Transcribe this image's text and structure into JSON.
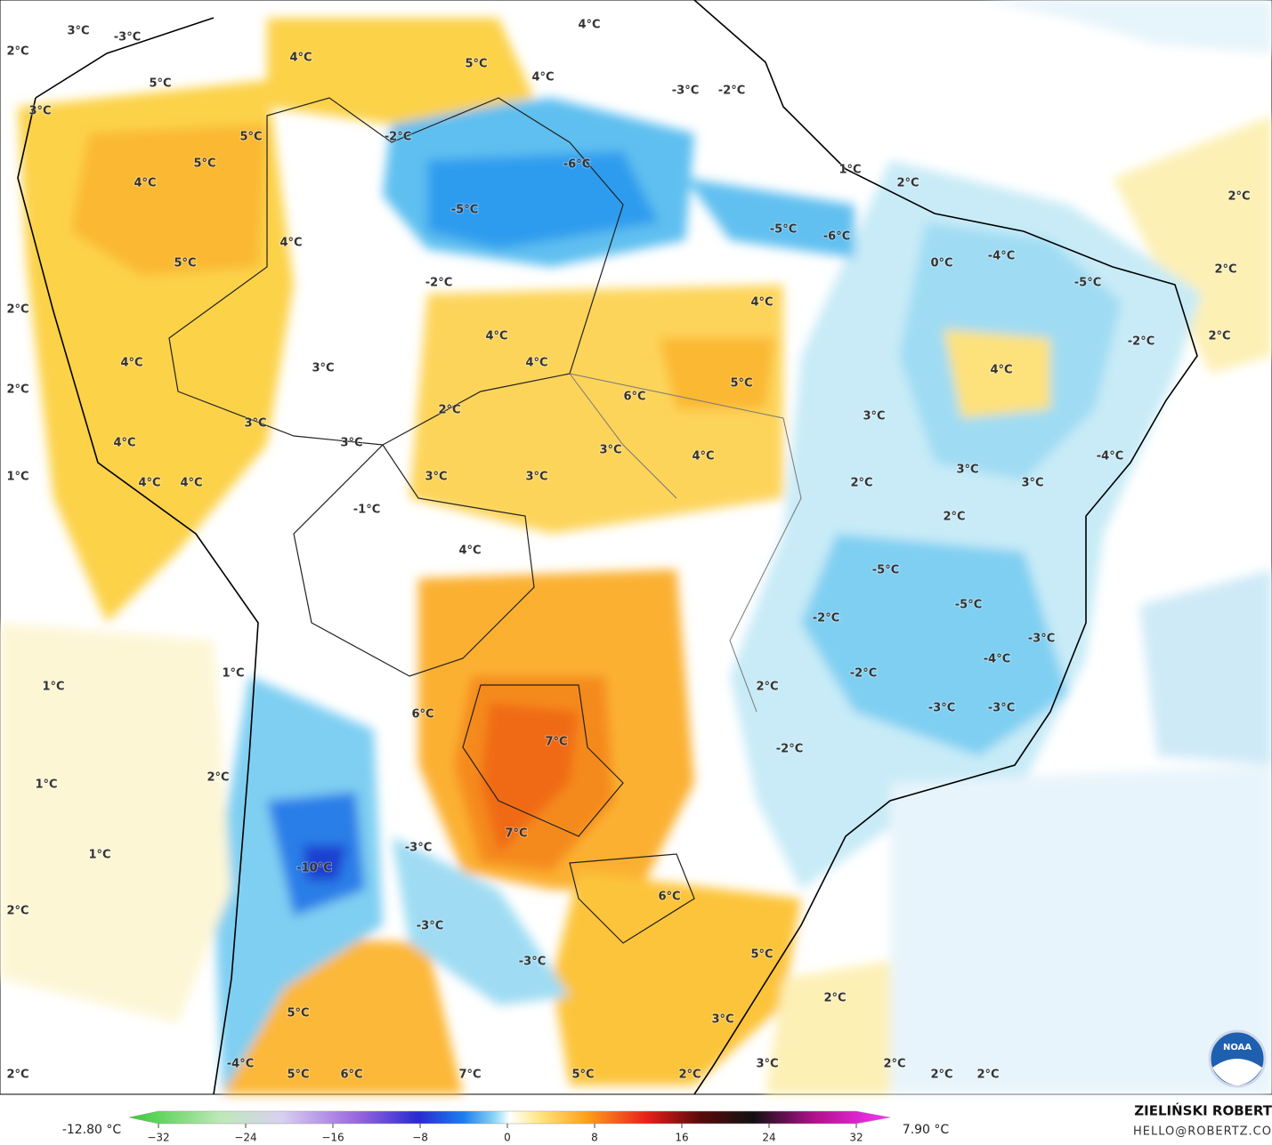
{
  "map": {
    "labels": [
      "2°C",
      "3°C",
      "-3°C",
      "4°C",
      "5°C",
      "4°C",
      "4°C",
      "5°C",
      "3°C",
      "-3°C",
      "-2°C",
      "5°C",
      "-2°C",
      "5°C",
      "-6°C",
      "1°C",
      "2°C",
      "4°C",
      "2°C",
      "-5°C",
      "4°C",
      "-5°C",
      "-6°C",
      "5°C",
      "0°C",
      "-4°C",
      "2°C",
      "-5°C",
      "2°C",
      "-2°C",
      "4°C",
      "2°C",
      "-2°C",
      "4°C",
      "4°C",
      "3°C",
      "4°C",
      "4°C",
      "5°C",
      "2°C",
      "6°C",
      "2°C",
      "3°C",
      "3°C",
      "3°C",
      "4°C",
      "3°C",
      "4°C",
      "-4°C",
      "3°C",
      "1°C",
      "3°C",
      "3°C",
      "2°C",
      "3°C",
      "4°C",
      "4°C",
      "-1°C",
      "2°C",
      "4°C",
      "-5°C",
      "-5°C",
      "-2°C",
      "-3°C",
      "-4°C",
      "1°C",
      "-2°C",
      "1°C",
      "2°C",
      "-3°C",
      "-3°C",
      "6°C",
      "7°C",
      "-2°C",
      "2°C",
      "1°C",
      "7°C",
      "-3°C",
      "1°C",
      "-10°C",
      "6°C",
      "2°C",
      "-3°C",
      "5°C",
      "-3°C",
      "2°C",
      "5°C",
      "3°C",
      "-4°C",
      "3°C",
      "2°C",
      "5°C",
      "6°C",
      "7°C",
      "5°C",
      "2°C",
      "2°C",
      "2°C",
      "2°C"
    ],
    "logo_text": "NOAA"
  },
  "colorbar": {
    "min_label": "-12.80 °C",
    "max_label": "7.90 °C",
    "lim": [
      -32,
      32
    ],
    "ticks": [
      {
        "value": -32,
        "label": "−32"
      },
      {
        "value": -24,
        "label": "−24"
      },
      {
        "value": -16,
        "label": "−16"
      },
      {
        "value": -8,
        "label": "−8"
      },
      0,
      8,
      16,
      24,
      32
    ]
  },
  "footer": {
    "author": "ZIELIŃSKI ROBERT",
    "email": "HELLO@ROBERTZ.CO"
  }
}
